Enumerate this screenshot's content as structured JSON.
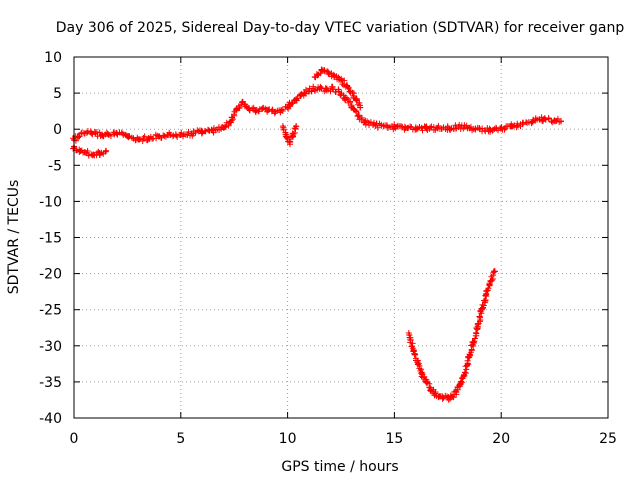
{
  "chart_data": {
    "type": "scatter",
    "title": "Day 306 of 2025, Sidereal Day-to-day VTEC variation (SDTVAR) for receiver ganp",
    "xlabel": "GPS time / hours",
    "ylabel": "SDTVAR / TECUs",
    "xlim": [
      0,
      25
    ],
    "ylim": [
      -40,
      10
    ],
    "xticks": [
      0,
      5,
      10,
      15,
      20,
      25
    ],
    "yticks": [
      -40,
      -35,
      -30,
      -25,
      -20,
      -15,
      -10,
      -5,
      0,
      5,
      10
    ],
    "grid": true,
    "marker": "+",
    "color": "#ff0000",
    "series": [
      {
        "name": "main arc",
        "x": [
          0.0,
          0.2,
          0.5,
          0.8,
          1.0,
          1.3,
          1.6,
          2.0,
          2.5,
          3.0,
          3.5,
          4.0,
          4.5,
          5.0,
          5.5,
          6.0,
          6.5,
          7.0,
          7.3,
          7.6,
          7.9,
          8.2,
          8.5,
          8.8,
          9.1,
          9.4,
          9.7,
          10.0,
          10.2,
          10.4,
          10.6,
          10.8,
          11.0,
          11.2,
          11.5,
          11.8,
          12.1,
          12.4,
          12.7,
          13.0,
          13.3,
          13.6,
          14.0,
          14.5,
          15.0,
          15.5,
          16.0,
          16.5,
          17.0,
          17.5,
          18.0,
          18.5,
          19.0,
          19.5,
          20.0,
          20.5,
          21.0,
          21.5,
          22.0,
          22.5,
          22.8
        ],
        "y": [
          -1.5,
          -1.0,
          -0.6,
          -0.5,
          -0.6,
          -0.8,
          -0.7,
          -0.6,
          -1.0,
          -1.4,
          -1.2,
          -1.0,
          -0.8,
          -0.8,
          -0.6,
          -0.3,
          -0.2,
          0.2,
          1.0,
          2.8,
          3.8,
          2.9,
          2.5,
          2.8,
          2.7,
          2.4,
          2.6,
          3.0,
          3.6,
          4.2,
          4.6,
          5.0,
          5.3,
          5.6,
          5.6,
          5.4,
          5.7,
          5.2,
          4.4,
          3.1,
          1.8,
          1.0,
          0.6,
          0.4,
          0.3,
          0.2,
          0.1,
          0.1,
          0.2,
          0.2,
          0.3,
          0.2,
          0.0,
          -0.1,
          0.1,
          0.4,
          0.7,
          1.3,
          1.4,
          1.2,
          1.1
        ]
      },
      {
        "name": "upper branch",
        "x": [
          11.3,
          11.6,
          11.9,
          12.2,
          12.5,
          12.8,
          13.1,
          13.4
        ],
        "y": [
          7.2,
          8.1,
          7.9,
          7.4,
          6.8,
          5.9,
          4.6,
          3.0
        ]
      },
      {
        "name": "early lower branch",
        "x": [
          0.0,
          0.3,
          0.6,
          0.9,
          1.2,
          1.5
        ],
        "y": [
          -2.4,
          -3.0,
          -3.3,
          -3.5,
          -3.3,
          -3.0
        ]
      },
      {
        "name": "lower dip branch",
        "x": [
          9.8,
          9.95,
          10.1,
          10.25,
          10.4
        ],
        "y": [
          0.2,
          -1.0,
          -1.8,
          -1.0,
          0.4
        ]
      },
      {
        "name": "deep arc",
        "x": [
          15.7,
          15.9,
          16.1,
          16.3,
          16.5,
          16.7,
          16.9,
          17.1,
          17.3,
          17.5,
          17.7,
          17.9,
          18.1,
          18.3,
          18.5,
          18.7,
          18.9,
          19.1,
          19.3,
          19.5,
          19.7
        ],
        "y": [
          -28.5,
          -30.6,
          -32.6,
          -34.0,
          -35.1,
          -36.0,
          -36.6,
          -37.0,
          -37.2,
          -37.2,
          -37.0,
          -36.4,
          -35.3,
          -33.7,
          -31.6,
          -29.5,
          -27.3,
          -25.0,
          -22.8,
          -21.0,
          -19.7
        ]
      }
    ]
  }
}
